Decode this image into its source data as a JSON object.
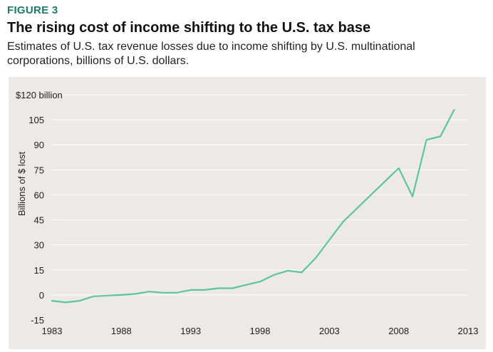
{
  "figure_label": "FIGURE 3",
  "title": "The rising cost of income shifting to the U.S. tax base",
  "subtitle": "Estimates of U.S. tax revenue losses due to income shifting by U.S. multinational corporations, billions of U.S. dollars.",
  "colors": {
    "figure_label": "#1d7a68",
    "line": "#5ec4a0",
    "plot_background": "#ece9e6",
    "grid": "#ffffff"
  },
  "chart_data": {
    "type": "line",
    "ylabel": "Billions of $ lost",
    "xlim": [
      1983,
      2013
    ],
    "ylim": [
      -15,
      120
    ],
    "x_ticks": [
      1983,
      1988,
      1993,
      1998,
      2003,
      2008,
      2013
    ],
    "x_tick_labels": [
      "1983",
      "1988",
      "1993",
      "1998",
      "2003",
      "2008",
      "2013"
    ],
    "y_ticks": [
      -15,
      0,
      15,
      30,
      45,
      60,
      75,
      90,
      105,
      120
    ],
    "y_tick_labels": [
      "-15",
      "0",
      "15",
      "30",
      "45",
      "60",
      "75",
      "90",
      "105",
      "$120 billion"
    ],
    "grid": true,
    "series": [
      {
        "x": [
          1983,
          1984,
          1985,
          1986,
          1987,
          1988,
          1989,
          1990,
          1991,
          1992,
          1993,
          1994,
          1995,
          1996,
          1997,
          1998,
          1999,
          2000,
          2001,
          2002,
          2003,
          2004,
          2005,
          2006,
          2007,
          2008,
          2009,
          2010,
          2011,
          2012
        ],
        "values": [
          -3.5,
          -4.5,
          -3.5,
          -0.8,
          -0.4,
          0,
          0.6,
          2,
          1.3,
          1.3,
          3,
          3,
          4,
          4,
          6,
          8,
          12,
          14.5,
          13.5,
          22,
          33,
          44,
          52,
          60,
          68,
          76,
          59,
          93,
          95,
          111
        ]
      }
    ]
  }
}
